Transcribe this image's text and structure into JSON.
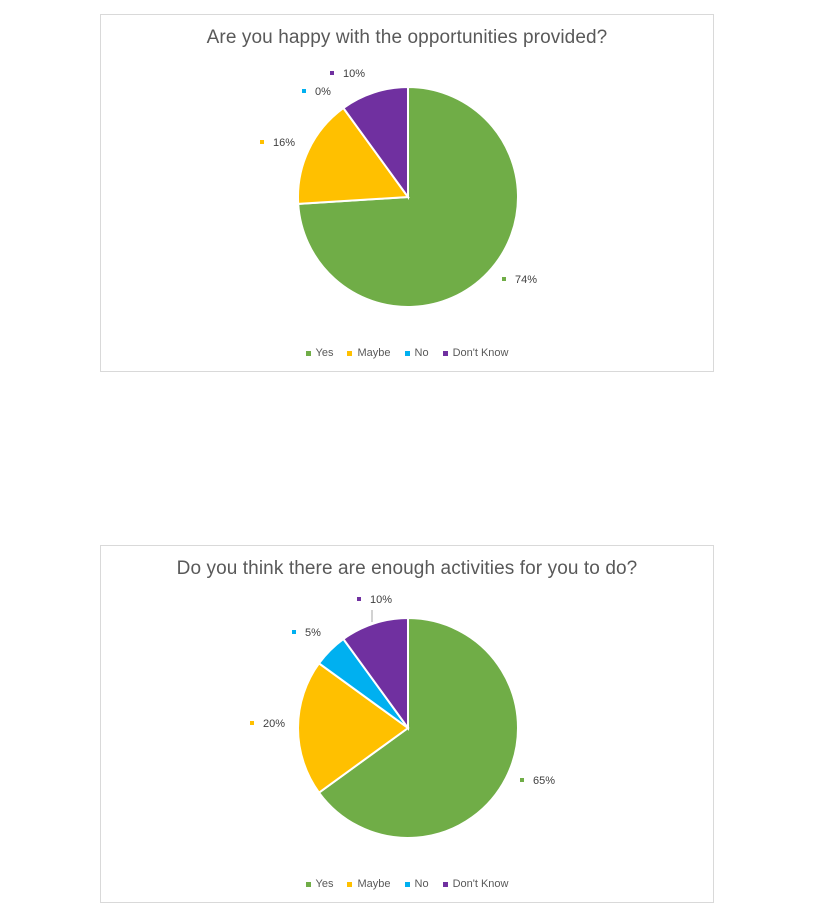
{
  "chart_data": [
    {
      "type": "pie",
      "title": "Are you happy with the opportunities provided?",
      "categories": [
        "Yes",
        "Maybe",
        "No",
        "Don't Know"
      ],
      "values": [
        74,
        16,
        0,
        10
      ],
      "labels": [
        "74%",
        "16%",
        "0%",
        "10%"
      ],
      "colors": [
        "#70ad47",
        "#ffc000",
        "#00b0f0",
        "#7030a0"
      ],
      "legend": "bottom"
    },
    {
      "type": "pie",
      "title": "Do you think there are enough activities for you to do?",
      "categories": [
        "Yes",
        "Maybe",
        "No",
        "Don't Know"
      ],
      "values": [
        65,
        20,
        5,
        10
      ],
      "labels": [
        "65%",
        "20%",
        "5%",
        "10%"
      ],
      "colors": [
        "#70ad47",
        "#ffc000",
        "#00b0f0",
        "#7030a0"
      ],
      "legend": "bottom"
    }
  ]
}
